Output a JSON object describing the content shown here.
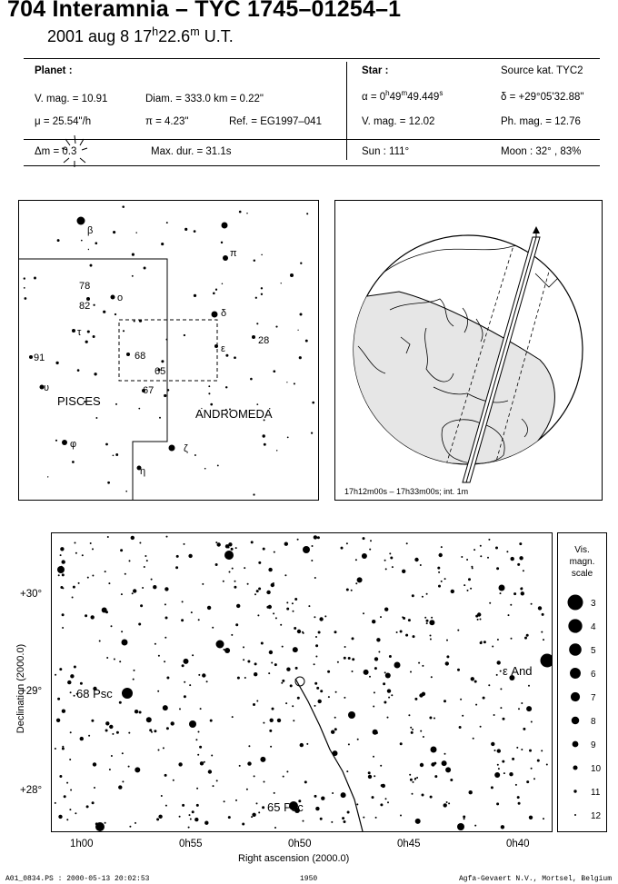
{
  "header": {
    "title": "704 Interamnia  –  TYC 1745–01254–1",
    "date_prefix": "2001 aug  8  17",
    "date_h": "h",
    "date_mid": "22.6",
    "date_m": "m",
    "date_suffix": " U.T."
  },
  "planet": {
    "heading": "Planet :",
    "vmag": "V. mag. = 10.91",
    "diam": "Diam. = 333.0 km = 0.22\"",
    "mu": "μ =  25.54\"/h",
    "pi": "π =  4.23\"",
    "ref": "Ref. = EG1997–041",
    "dm": "Δm = 0.3",
    "maxdur": "Max. dur. = 31.1s"
  },
  "star": {
    "heading": "Star :",
    "source": "Source kat.  TYC2",
    "alpha_a": "α =  0",
    "alpha_h": "h",
    "alpha_b": "49",
    "alpha_m": "m",
    "alpha_c": "49.449",
    "alpha_s": "s",
    "delta": "δ = +29°05'32.88\"",
    "vmag": "V. mag. = 12.02",
    "phmag": "Ph. mag. = 12.76",
    "sun": "Sun : 111°",
    "moon": "Moon :  32° , 83%"
  },
  "finder": {
    "stars": [
      "β",
      "π",
      "δ",
      "ε",
      "28",
      "78",
      "ο",
      "82",
      "τ",
      "91",
      "υ",
      "68",
      "65",
      "67",
      "φ",
      "ζ",
      "η"
    ],
    "constellations": [
      "PISCES",
      "ANDROMEDA"
    ]
  },
  "globe": {
    "caption": "17h12m00s – 17h33m00s; int.  1m"
  },
  "chart": {
    "ylabel": "Declination (2000.0)",
    "xlabel": "Right ascension (2000.0)",
    "yticks": [
      "+30°",
      "+29°",
      "+28°"
    ],
    "xticks": [
      "1h00",
      "0h55",
      "0h50",
      "0h45",
      "0h40"
    ],
    "labels": [
      "68 Psc",
      "ε And",
      "65 Psc"
    ]
  },
  "legend": {
    "title1": "Vis.",
    "title2": "magn.",
    "title3": "scale",
    "mags": [
      "3",
      "4",
      "5",
      "6",
      "7",
      "8",
      "9",
      "10",
      "11",
      "12"
    ]
  },
  "footer": {
    "left": "A01_0834.PS : 2000-05-13 20:02:53",
    "mid": "1950",
    "right": "Agfa-Gevaert N.V., Mortsel, Belgium"
  }
}
